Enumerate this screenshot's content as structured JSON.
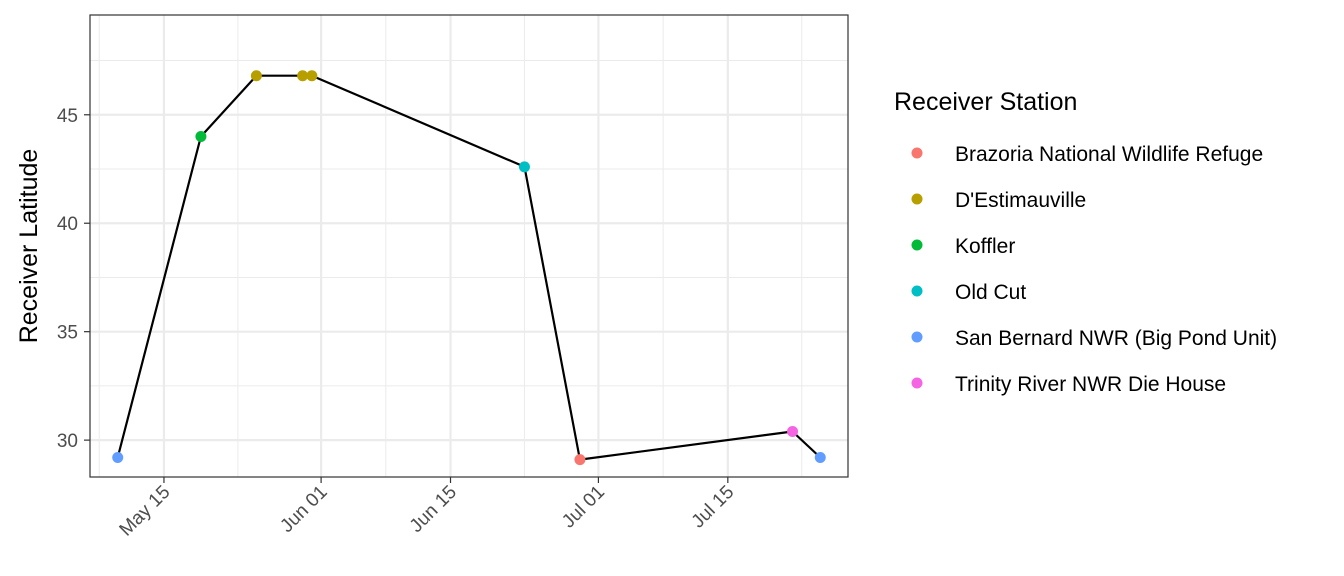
{
  "chart_data": {
    "type": "scatter",
    "title": "",
    "xlabel": "",
    "ylabel": "Receiver Latitude",
    "x_axis_type": "date",
    "xlim": [
      "2023-05-07",
      "2023-07-28"
    ],
    "ylim": [
      28.3,
      49.6
    ],
    "x_ticks": [
      {
        "date": "2023-05-15",
        "label": "May 15"
      },
      {
        "date": "2023-06-01",
        "label": "Jun 01"
      },
      {
        "date": "2023-06-15",
        "label": "Jun 15"
      },
      {
        "date": "2023-07-01",
        "label": "Jul 01"
      },
      {
        "date": "2023-07-15",
        "label": "Jul 15"
      }
    ],
    "x_minor_dates": [
      "2023-05-08",
      "2023-05-23",
      "2023-06-08",
      "2023-06-23",
      "2023-07-08",
      "2023-07-23"
    ],
    "y_ticks": [
      30,
      35,
      40,
      45
    ],
    "y_minor": [
      32.5,
      37.5,
      42.5,
      47.5
    ],
    "grid": true,
    "connecting_line_color": "#000000",
    "legend": {
      "title": "Receiver Station",
      "placement": "right",
      "entries": [
        {
          "name": "Brazoria National Wildlife Refuge",
          "color": "#F8766D"
        },
        {
          "name": "D'Estimauville",
          "color": "#B79F00"
        },
        {
          "name": "Koffler",
          "color": "#00BA38"
        },
        {
          "name": "Old Cut",
          "color": "#00BFC4"
        },
        {
          "name": "San Bernard NWR (Big Pond Unit)",
          "color": "#619CFF"
        },
        {
          "name": "Trinity River NWR Die House",
          "color": "#F564E3"
        }
      ]
    },
    "points": [
      {
        "date": "2023-05-10",
        "y": 29.2,
        "station": "San Bernard NWR (Big Pond Unit)"
      },
      {
        "date": "2023-05-19",
        "y": 44.0,
        "station": "Koffler"
      },
      {
        "date": "2023-05-25",
        "y": 46.8,
        "station": "D'Estimauville"
      },
      {
        "date": "2023-05-30",
        "y": 46.8,
        "station": "D'Estimauville"
      },
      {
        "date": "2023-05-31",
        "y": 46.8,
        "station": "D'Estimauville"
      },
      {
        "date": "2023-06-23",
        "y": 42.6,
        "station": "Old Cut"
      },
      {
        "date": "2023-06-29",
        "y": 29.1,
        "station": "Brazoria National Wildlife Refuge"
      },
      {
        "date": "2023-07-22",
        "y": 30.4,
        "station": "Trinity River NWR Die House"
      },
      {
        "date": "2023-07-25",
        "y": 29.2,
        "station": "San Bernard NWR (Big Pond Unit)"
      }
    ]
  }
}
